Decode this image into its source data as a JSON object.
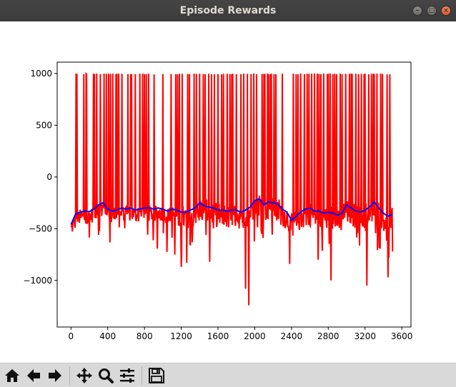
{
  "window": {
    "title": "Episode Rewards"
  },
  "toolbar": {
    "buttons": [
      "home-icon",
      "back-icon",
      "forward-icon",
      "pan-icon",
      "zoom-icon",
      "configure-subplots-icon",
      "save-icon"
    ]
  },
  "colors": {
    "raw_series": "#ff0000",
    "smoothed_series": "#0000ff",
    "toolbar_bg": "#d9d9d9",
    "titlebar_bg": "#3c3b37"
  },
  "chart_data": {
    "type": "line",
    "title": "",
    "xlabel": "",
    "ylabel": "",
    "xlim": [
      -150,
      3700
    ],
    "ylim": [
      -1450,
      1110
    ],
    "xticks": [
      0,
      400,
      800,
      1200,
      1600,
      2000,
      2400,
      2800,
      3200,
      3600
    ],
    "yticks": [
      -1000,
      -500,
      0,
      500,
      1000
    ],
    "tick_labels_x": [
      "0",
      "400",
      "800",
      "1200",
      "1600",
      "2000",
      "2400",
      "2800",
      "3200",
      "3600"
    ],
    "tick_labels_y": [
      "−1000",
      "−500",
      "0",
      "500",
      "1000"
    ],
    "grid": false,
    "series": [
      {
        "color": "#ff0000",
        "x": [
          0,
          3500
        ],
        "band": {
          "low": -550,
          "high": -270
        },
        "spikes_to_1000_at": [
          55,
          65,
          140,
          165,
          170,
          245,
          255,
          280,
          320,
          360,
          385,
          410,
          430,
          455,
          490,
          500,
          520,
          555,
          620,
          650,
          660,
          700,
          750,
          780,
          800,
          820,
          845,
          905,
          1000,
          1090,
          1140,
          1160,
          1180,
          1210,
          1270,
          1290,
          1340,
          1365,
          1400,
          1440,
          1460,
          1500,
          1530,
          1560,
          1600,
          1640,
          1660,
          1700,
          1730,
          1750,
          1760,
          1800,
          1850,
          1880,
          1920,
          1960,
          1990,
          2020,
          2080,
          2100,
          2110,
          2140,
          2150,
          2170,
          2180,
          2210,
          2230,
          2300,
          2420,
          2450,
          2470,
          2500,
          2540,
          2570,
          2590,
          2620,
          2650,
          2680,
          2700,
          2720,
          2750,
          2790,
          2800,
          2820,
          2850,
          2870,
          2890,
          2930,
          2950,
          2990,
          3030,
          3050,
          3060,
          3100,
          3130,
          3160,
          3190,
          3200,
          3240,
          3270,
          3290,
          3300,
          3330,
          3370,
          3390,
          3440,
          3470
        ],
        "dips": [
          {
            "x": 45,
            "y": -490
          },
          {
            "x": 300,
            "y": -560
          },
          {
            "x": 700,
            "y": -660
          },
          {
            "x": 1130,
            "y": -750
          },
          {
            "x": 1200,
            "y": -870
          },
          {
            "x": 1260,
            "y": -830
          },
          {
            "x": 1510,
            "y": -820
          },
          {
            "x": 1900,
            "y": -1080
          },
          {
            "x": 1935,
            "y": -1240
          },
          {
            "x": 2020,
            "y": -770
          },
          {
            "x": 2150,
            "y": -780
          },
          {
            "x": 2300,
            "y": -1050
          },
          {
            "x": 2690,
            "y": -800
          },
          {
            "x": 2790,
            "y": -900
          },
          {
            "x": 2830,
            "y": -1000
          },
          {
            "x": 3220,
            "y": -1050
          },
          {
            "x": 3300,
            "y": -1290
          },
          {
            "x": 3450,
            "y": -970
          },
          {
            "x": 3500,
            "y": -720
          }
        ]
      },
      {
        "color": "#0000ff",
        "x": [
          0,
          50,
          100,
          150,
          200,
          250,
          300,
          350,
          400,
          450,
          500,
          550,
          600,
          650,
          700,
          750,
          800,
          850,
          900,
          950,
          1000,
          1050,
          1100,
          1150,
          1200,
          1250,
          1300,
          1350,
          1400,
          1450,
          1500,
          1550,
          1600,
          1650,
          1700,
          1750,
          1800,
          1850,
          1900,
          1950,
          2000,
          2050,
          2100,
          2150,
          2200,
          2250,
          2300,
          2350,
          2400,
          2450,
          2500,
          2550,
          2600,
          2650,
          2700,
          2750,
          2800,
          2850,
          2900,
          2950,
          3000,
          3050,
          3100,
          3150,
          3200,
          3250,
          3300,
          3350,
          3400,
          3450,
          3500
        ],
        "y": [
          -460,
          -360,
          -340,
          -330,
          -335,
          -310,
          -270,
          -250,
          -310,
          -330,
          -320,
          -300,
          -310,
          -300,
          -320,
          -310,
          -300,
          -300,
          -310,
          -300,
          -310,
          -330,
          -310,
          -320,
          -340,
          -340,
          -320,
          -300,
          -250,
          -280,
          -290,
          -300,
          -320,
          -320,
          -330,
          -320,
          -320,
          -340,
          -320,
          -290,
          -230,
          -210,
          -270,
          -240,
          -250,
          -260,
          -310,
          -340,
          -420,
          -380,
          -340,
          -310,
          -300,
          -330,
          -330,
          -350,
          -340,
          -350,
          -370,
          -350,
          -270,
          -300,
          -330,
          -340,
          -320,
          -290,
          -240,
          -300,
          -350,
          -380,
          -360
        ]
      }
    ]
  }
}
